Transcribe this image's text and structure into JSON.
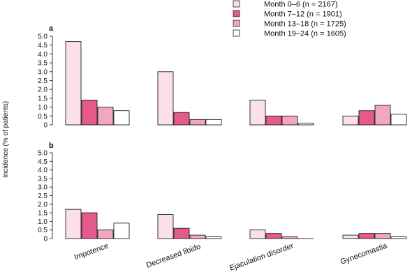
{
  "chart_data": {
    "type": "bar",
    "ylabel": "Incidence (% of patients)",
    "ylim": [
      0,
      5.0
    ],
    "yticks": [
      "0",
      "0.5",
      "1.0",
      "1.5",
      "2.0",
      "2.5",
      "3.0",
      "3.5",
      "4.0",
      "4.5",
      "5.0"
    ],
    "categories": [
      "Impotence",
      "Decreased libido",
      "Ejaculation disorder",
      "Gynecomastia"
    ],
    "legend": [
      {
        "name": "Month 0–6 (n = 2167)",
        "color": "#fbe0e8"
      },
      {
        "name": "Month 7–12 (n = 1901)",
        "color": "#e55a8c"
      },
      {
        "name": "Month 13–18 (n = 1725)",
        "color": "#f2a7bf"
      },
      {
        "name": "Month 19–24 (n = 1605)",
        "color": "#ffffff"
      }
    ],
    "panels": [
      {
        "label": "a",
        "series": [
          {
            "name": "Month 0–6 (n = 2167)",
            "values": [
              4.7,
              3.0,
              1.4,
              0.5
            ]
          },
          {
            "name": "Month 7–12 (n = 1901)",
            "values": [
              1.4,
              0.7,
              0.5,
              0.8
            ]
          },
          {
            "name": "Month 13–18 (n = 1725)",
            "values": [
              1.0,
              0.3,
              0.5,
              1.1
            ]
          },
          {
            "name": "Month 19–24 (n = 1605)",
            "values": [
              0.8,
              0.3,
              0.1,
              0.6
            ]
          }
        ]
      },
      {
        "label": "b",
        "series": [
          {
            "name": "Month 0–6 (n = 2167)",
            "values": [
              1.7,
              1.4,
              0.5,
              0.2
            ]
          },
          {
            "name": "Month 7–12 (n = 1901)",
            "values": [
              1.5,
              0.6,
              0.3,
              0.3
            ]
          },
          {
            "name": "Month 13–18 (n = 1725)",
            "values": [
              0.5,
              0.2,
              0.1,
              0.3
            ]
          },
          {
            "name": "Month 19–24 (n = 1605)",
            "values": [
              0.9,
              0.1,
              0.0,
              0.1
            ]
          }
        ]
      }
    ]
  }
}
